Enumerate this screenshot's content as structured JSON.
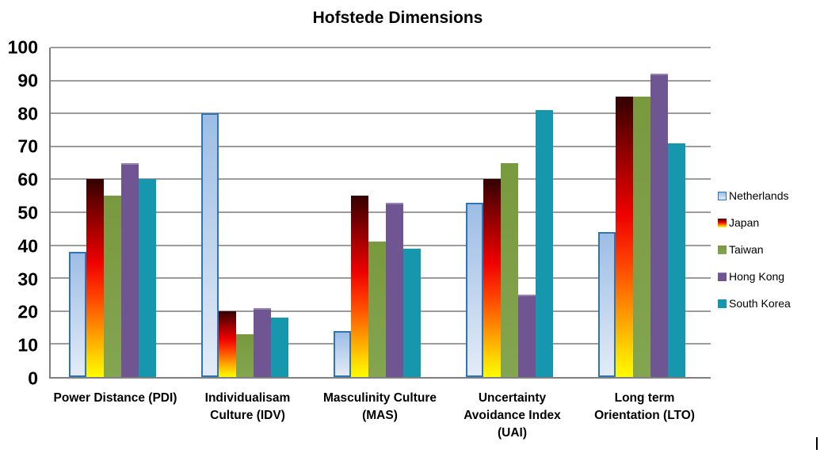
{
  "chart_data": {
    "type": "bar",
    "title": "Hofstede Dimensions",
    "categories": [
      "Power Distance (PDI)",
      "Individualisam\nCulture (IDV)",
      "Masculinity Culture\n(MAS)",
      "Uncertainty\nAvoidance Index\n(UAI)",
      "Long term\nOrientation (LTO)"
    ],
    "series": [
      {
        "name": "Netherlands",
        "values": [
          38,
          80,
          14,
          53,
          44
        ]
      },
      {
        "name": "Japan",
        "values": [
          60,
          20,
          55,
          60,
          85
        ]
      },
      {
        "name": "Taiwan",
        "values": [
          55,
          13,
          41,
          65,
          85
        ]
      },
      {
        "name": "Hong Kong",
        "values": [
          65,
          21,
          53,
          25,
          92
        ]
      },
      {
        "name": "South Korea",
        "values": [
          60,
          18,
          39,
          81,
          71
        ]
      }
    ],
    "y_ticks": [
      100,
      90,
      80,
      70,
      60,
      50,
      40,
      30,
      20,
      10,
      0
    ],
    "ylim": [
      0,
      100
    ],
    "xlabel": "",
    "ylabel": "",
    "grid": "horizontal",
    "legend_position": "right"
  },
  "colors": {
    "background": "#ffffff",
    "text": "#000000",
    "grid_line": "#9c9c9c",
    "axis_line": "#7f7f7f",
    "netherlands_border": "#2e75b6",
    "netherlands_fill_top": "#9dbde5",
    "netherlands_fill_bottom": "#e3ebf7",
    "japan_gradient": [
      "#330000",
      "#990000",
      "#ee0000",
      "#ff3c00",
      "#ff8c00",
      "#ffd300",
      "#fffb00"
    ],
    "taiwan_fill_top": "#79993f",
    "taiwan_fill_bottom": "#84a551",
    "hong_kong_fill": "#6f5591",
    "hong_kong_highlight": "#9583b2",
    "south_korea_fill": "#1797ad"
  }
}
